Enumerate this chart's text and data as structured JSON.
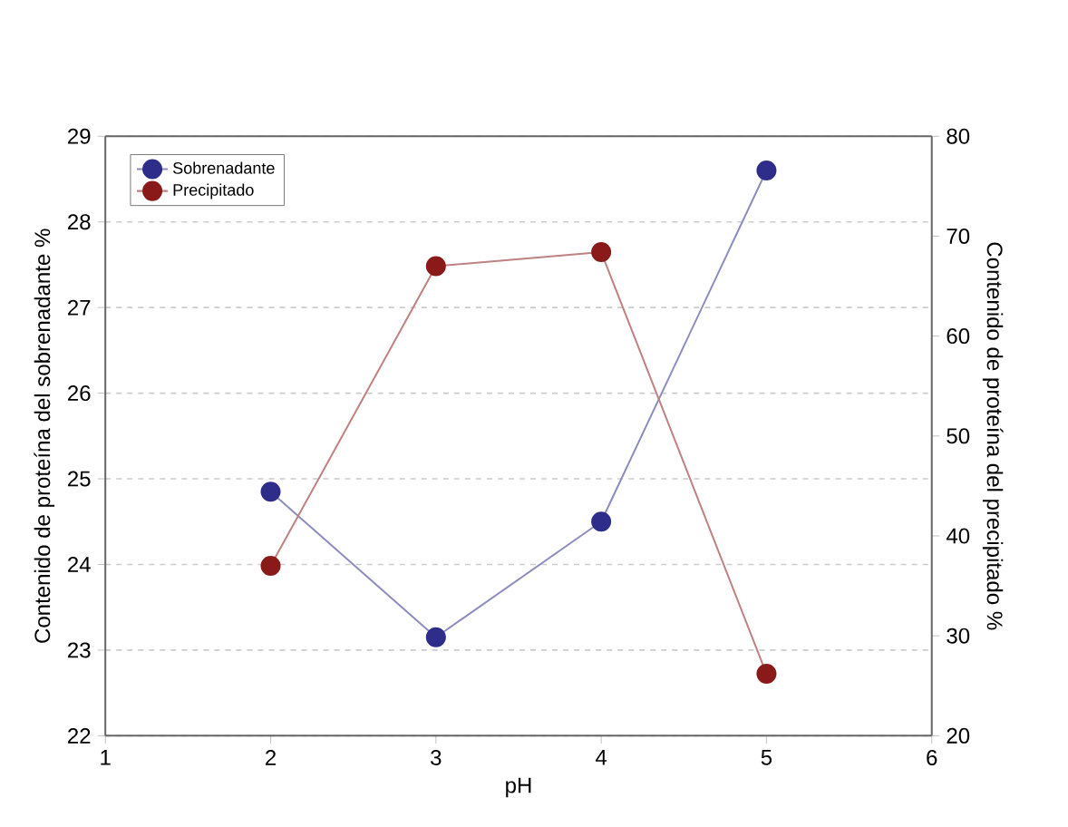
{
  "chart_data": {
    "type": "line",
    "xlabel": "pH",
    "ylabel": "Contenido de proteína del sobrenadante %",
    "y2label": "Contenido de proteína del precipitado %",
    "x": [
      2,
      3,
      4,
      5
    ],
    "series": [
      {
        "name": "Sobrenadante",
        "color": "#2e2e8a",
        "values": [
          24.85,
          23.15,
          24.5,
          28.6
        ]
      },
      {
        "name": "Precipitado",
        "color": "#8a1a1a",
        "axis": "y2",
        "values": [
          37,
          67,
          68.4,
          26.2
        ]
      }
    ],
    "xlim": [
      1,
      6
    ],
    "xticks": [
      1,
      2,
      3,
      4,
      5,
      6
    ],
    "ylim": [
      22,
      29
    ],
    "yticks": [
      22,
      23,
      24,
      25,
      26,
      27,
      28,
      29
    ],
    "y2lim": [
      20,
      80
    ],
    "y2ticks": [
      20,
      30,
      40,
      50,
      60,
      70,
      80
    ],
    "grid": "y",
    "legend": "top left",
    "marker": "circle",
    "line_style": "solid"
  }
}
